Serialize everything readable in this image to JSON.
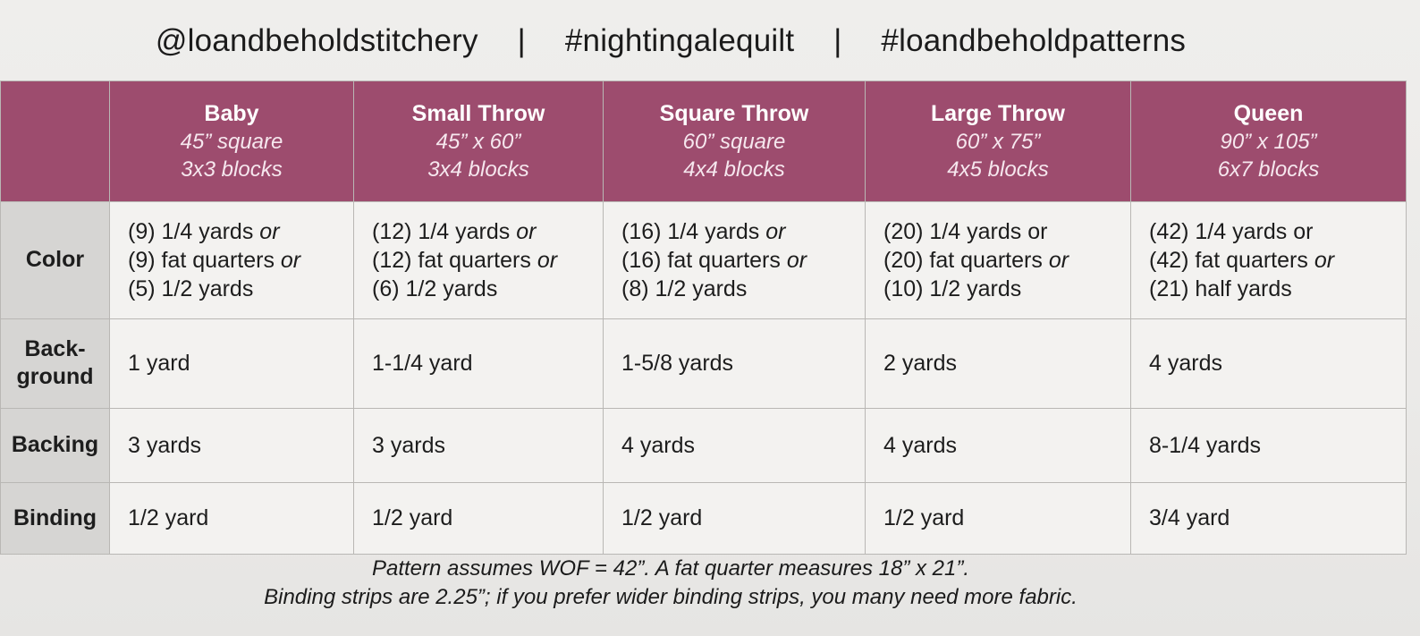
{
  "header": {
    "instagram": "@loandbeholdstitchery",
    "separator": "|",
    "quilt_tag": "#nightingalequilt",
    "pattern_tag": "#loandbeholdpatterns"
  },
  "colors": {
    "header_band": "#9d4c6e",
    "row_label_bg": "#d6d5d3",
    "cell_bg": "#f3f2f0"
  },
  "sizes": [
    {
      "name": "Baby",
      "dimensions": "45” square",
      "blocks": "3x3 blocks"
    },
    {
      "name": "Small Throw",
      "dimensions": "45” x 60”",
      "blocks": "3x4 blocks"
    },
    {
      "name": "Square Throw",
      "dimensions": "60” square",
      "blocks": "4x4 blocks"
    },
    {
      "name": "Large Throw",
      "dimensions": "60” x 75”",
      "blocks": "4x5 blocks"
    },
    {
      "name": "Queen",
      "dimensions": "90” x 105”",
      "blocks": "6x7 blocks"
    }
  ],
  "rows": {
    "color": {
      "label": "Color",
      "or_word": "or",
      "cells": [
        {
          "l1": "(9) 1/4 yards",
          "l2": "(9) fat quarters",
          "l3": "(5) 1/2 yards"
        },
        {
          "l1": "(12) 1/4 yards",
          "l2": "(12) fat quarters",
          "l3": "(6) 1/2 yards"
        },
        {
          "l1": "(16) 1/4 yards",
          "l2": "(16) fat quarters",
          "l3": "(8) 1/2 yards"
        },
        {
          "l1": "(20) 1/4 yards",
          "l2": "(20) fat quarters",
          "l3": "(10) 1/2 yards"
        },
        {
          "l1": "(42) 1/4 yards",
          "l2": "(42) fat quarters",
          "l3": "(21) half yards"
        }
      ]
    },
    "background": {
      "label_1": "Back-",
      "label_2": "ground",
      "cells": [
        "1 yard",
        "1-1/4 yard",
        "1-5/8 yards",
        "2 yards",
        "4 yards"
      ]
    },
    "backing": {
      "label": "Backing",
      "cells": [
        "3 yards",
        "3 yards",
        "4 yards",
        "4 yards",
        "8-1/4 yards"
      ]
    },
    "binding": {
      "label": "Binding",
      "cells": [
        "1/2 yard",
        "1/2 yard",
        "1/2 yard",
        "1/2 yard",
        "3/4 yard"
      ]
    }
  },
  "notes": {
    "line1": "Pattern assumes WOF = 42”. A fat quarter measures 18” x 21”.",
    "line2": "Binding strips are 2.25”; if you prefer wider binding strips, you many need more fabric."
  }
}
